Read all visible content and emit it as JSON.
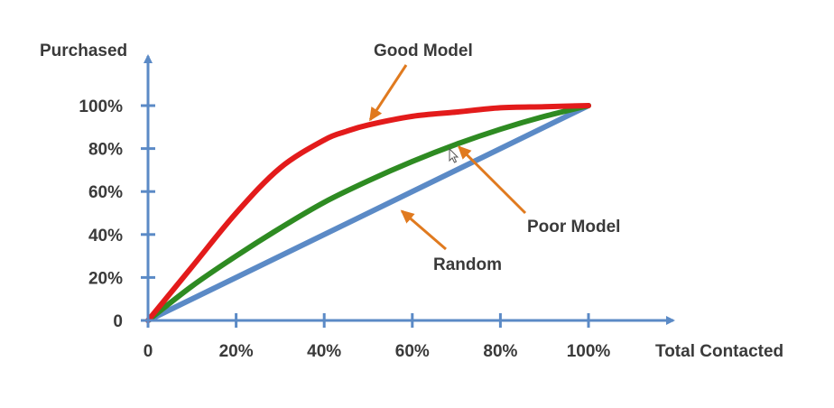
{
  "chart_data": {
    "type": "line",
    "xlabel": "Total Contacted",
    "ylabel": "Purchased",
    "xlim": [
      0,
      100
    ],
    "ylim": [
      0,
      100
    ],
    "x_ticks": [
      {
        "value": 0,
        "label": "0"
      },
      {
        "value": 20,
        "label": "20%"
      },
      {
        "value": 40,
        "label": "40%"
      },
      {
        "value": 60,
        "label": "60%"
      },
      {
        "value": 80,
        "label": "80%"
      },
      {
        "value": 100,
        "label": "100%"
      }
    ],
    "y_ticks": [
      {
        "value": 0,
        "label": "0"
      },
      {
        "value": 20,
        "label": "20%"
      },
      {
        "value": 40,
        "label": "40%"
      },
      {
        "value": 60,
        "label": "60%"
      },
      {
        "value": 80,
        "label": "80%"
      },
      {
        "value": 100,
        "label": "100%"
      }
    ],
    "grid": false,
    "series": [
      {
        "key": "random",
        "color": "#5b8ac6",
        "x": [
          0,
          100
        ],
        "y": [
          0,
          100
        ]
      },
      {
        "key": "poor",
        "color": "#2e8b22",
        "x": [
          0,
          10,
          20,
          30,
          40,
          50,
          60,
          70,
          80,
          90,
          100
        ],
        "y": [
          0,
          16,
          30,
          43,
          55,
          65,
          74,
          82,
          89,
          95,
          100
        ]
      },
      {
        "key": "good",
        "color": "#e31b1b",
        "x": [
          0,
          10,
          20,
          30,
          40,
          45,
          50,
          60,
          70,
          80,
          90,
          100
        ],
        "y": [
          0,
          25,
          50,
          71,
          84,
          88,
          91,
          95,
          97,
          99,
          99.5,
          100
        ]
      }
    ],
    "annotations": [
      {
        "key": "good",
        "text": "Good Model",
        "arrow_to": {
          "x": 50,
          "y": 92
        }
      },
      {
        "key": "poor",
        "text": "Poor Model",
        "arrow_to": {
          "x": 70,
          "y": 82
        }
      },
      {
        "key": "random",
        "text": "Random",
        "arrow_to": {
          "x": 57,
          "y": 52
        }
      }
    ],
    "arrow_color": "#e07a1f",
    "axis_color": "#5b8ac6"
  }
}
